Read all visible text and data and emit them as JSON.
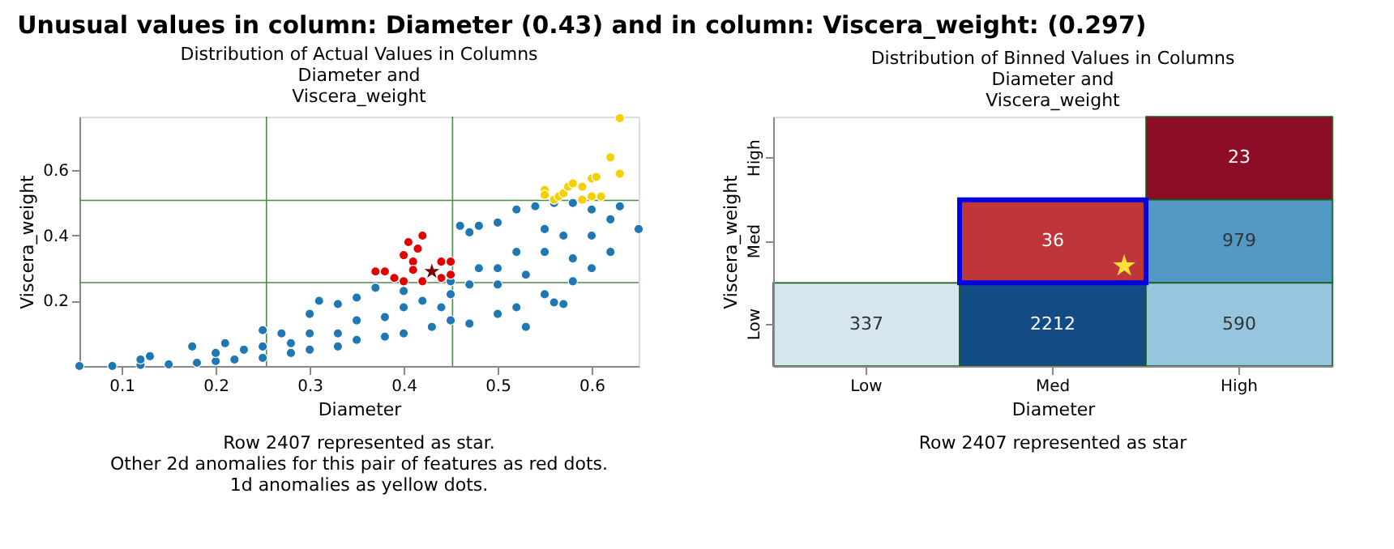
{
  "chart_data": [
    {
      "type": "scatter",
      "title": "Unusual values in column: Diameter (0.43) and in column: Viscera_weight: (0.297)",
      "subtitle": "Distribution of Actual Values in Columns\nDiameter and\nViscera_weight",
      "xlabel": "Diameter",
      "ylabel": "Viscera_weight",
      "xlim": [
        0.055,
        0.65
      ],
      "ylim": [
        0.0,
        0.765
      ],
      "xticks": [
        0.1,
        0.2,
        0.3,
        0.4,
        0.5,
        0.6
      ],
      "yticks": [
        0.2,
        0.4,
        0.6
      ],
      "marker": "circle",
      "series": [
        {
          "color": "#1f77b4",
          "x": [
            0.055,
            0.09,
            0.12,
            0.15,
            0.18,
            0.2,
            0.22,
            0.25,
            0.28,
            0.3,
            0.33,
            0.35,
            0.38,
            0.4,
            0.43,
            0.45,
            0.47,
            0.5,
            0.52,
            0.53,
            0.55,
            0.56,
            0.57,
            0.58,
            0.6,
            0.62,
            0.12,
            0.13,
            0.175,
            0.21,
            0.25,
            0.27,
            0.3,
            0.31,
            0.33,
            0.35,
            0.37,
            0.4,
            0.45,
            0.46,
            0.47,
            0.48,
            0.5,
            0.52,
            0.54,
            0.56,
            0.58,
            0.6,
            0.62,
            0.63,
            0.65,
            0.2,
            0.25,
            0.3,
            0.35,
            0.4,
            0.42,
            0.45,
            0.48,
            0.5,
            0.52,
            0.55,
            0.57,
            0.5,
            0.55,
            0.6,
            0.44,
            0.38,
            0.33,
            0.28,
            0.23,
            0.53,
            0.58,
            0.47
          ],
          "values": [
            0.0,
            0.0,
            0.003,
            0.005,
            0.01,
            0.015,
            0.02,
            0.025,
            0.04,
            0.05,
            0.06,
            0.08,
            0.09,
            0.1,
            0.12,
            0.14,
            0.13,
            0.16,
            0.18,
            0.12,
            0.22,
            0.195,
            0.19,
            0.26,
            0.3,
            0.35,
            0.02,
            0.03,
            0.06,
            0.07,
            0.11,
            0.1,
            0.16,
            0.2,
            0.19,
            0.21,
            0.24,
            0.23,
            0.26,
            0.43,
            0.41,
            0.43,
            0.44,
            0.48,
            0.49,
            0.5,
            0.5,
            0.48,
            0.45,
            0.49,
            0.42,
            0.04,
            0.06,
            0.1,
            0.14,
            0.18,
            0.2,
            0.22,
            0.3,
            0.3,
            0.35,
            0.35,
            0.4,
            0.25,
            0.42,
            0.4,
            0.18,
            0.15,
            0.1,
            0.07,
            0.05,
            0.28,
            0.33,
            0.25
          ]
        },
        {
          "color": "#e30000",
          "x": [
            0.37,
            0.38,
            0.39,
            0.4,
            0.41,
            0.405,
            0.42,
            0.41,
            0.44,
            0.45,
            0.45,
            0.44,
            0.4,
            0.42,
            0.415
          ],
          "values": [
            0.29,
            0.29,
            0.27,
            0.34,
            0.32,
            0.38,
            0.4,
            0.295,
            0.32,
            0.32,
            0.28,
            0.27,
            0.26,
            0.26,
            0.36
          ]
        },
        {
          "color": "#f5d000",
          "x": [
            0.55,
            0.55,
            0.56,
            0.565,
            0.57,
            0.575,
            0.58,
            0.59,
            0.59,
            0.6,
            0.6,
            0.605,
            0.61,
            0.62,
            0.63,
            0.63
          ],
          "values": [
            0.54,
            0.525,
            0.51,
            0.52,
            0.53,
            0.55,
            0.56,
            0.55,
            0.51,
            0.52,
            0.575,
            0.58,
            0.52,
            0.64,
            0.59,
            0.76
          ]
        },
        {
          "color": "#7a0000",
          "marker": "star",
          "x": [
            0.43
          ],
          "values": [
            0.29
          ]
        }
      ],
      "ref_lines": [
        {
          "axis": "x",
          "value": 0.254,
          "color": "#4a8a4a"
        },
        {
          "axis": "x",
          "value": 0.452,
          "color": "#4a8a4a"
        },
        {
          "axis": "y",
          "value": 0.256,
          "color": "#4a8a4a"
        },
        {
          "axis": "y",
          "value": 0.508,
          "color": "#4a8a4a"
        }
      ],
      "annotations": [
        "Row 2407 represented as star.",
        "Other 2d anomalies for this pair of features as red dots.",
        "1d anomalies as yellow dots."
      ]
    },
    {
      "type": "heatmap",
      "title": "Distribution of Binned Values in Columns\nDiameter and\nViscera_weight",
      "xlabel": "Diameter",
      "ylabel": "Viscera_weight",
      "categories": [
        "Low",
        "Med",
        "High"
      ],
      "y_categories": [
        "High",
        "Med",
        "Low"
      ],
      "cells": [
        [
          null,
          null,
          23
        ],
        [
          null,
          36,
          979
        ],
        [
          337,
          2212,
          590
        ]
      ],
      "data_labels": true,
      "annotations": [
        "Row 2407 represented as star",
        "★"
      ]
    }
  ]
}
